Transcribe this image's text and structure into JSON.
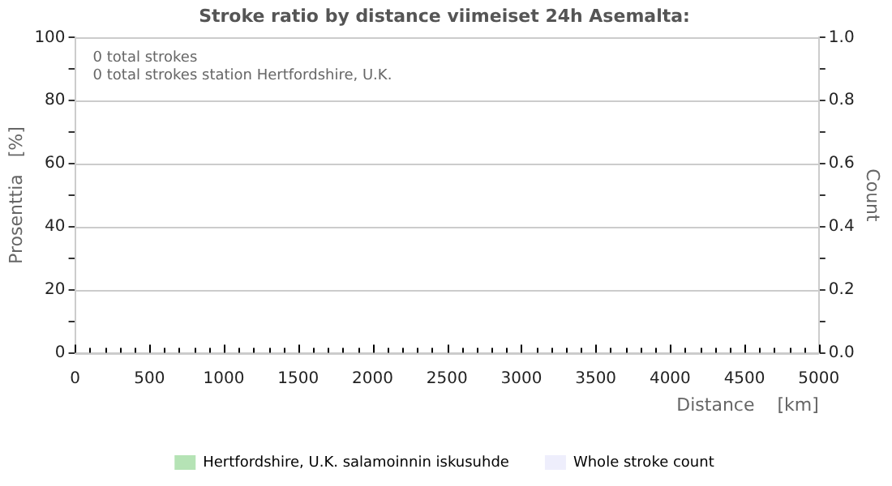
{
  "chart_data": {
    "type": "bar",
    "title": "Stroke ratio by distance viimeiset 24h Asemalta:",
    "xlabel": "Distance    [km]",
    "ylabel": "Prosenttia   [%]",
    "y2label": "Count",
    "annotations": [
      "0 total strokes",
      "0 total strokes station Hertfordshire, U.K."
    ],
    "series": [
      {
        "name": "Hertfordshire, U.K. salamoinnin iskusuhde",
        "color": "#b5e3b5",
        "values": [
          null,
          null,
          null,
          null,
          null,
          null,
          null,
          null,
          null,
          null,
          null,
          null,
          null,
          null,
          null,
          null,
          null,
          null,
          null,
          null,
          null,
          null,
          null,
          null,
          null,
          null,
          null,
          null,
          null,
          null,
          null,
          null,
          null,
          null,
          null,
          null,
          null,
          null,
          null,
          null,
          null,
          null,
          null,
          null,
          null,
          null,
          null,
          null,
          null,
          null,
          null
        ]
      },
      {
        "name": "Whole stroke count",
        "color": "#eeeefc",
        "values": [
          null,
          null,
          null,
          null,
          null,
          null,
          null,
          null,
          null,
          null,
          null,
          null,
          null,
          null,
          null,
          null,
          null,
          null,
          null,
          null,
          null,
          null,
          null,
          null,
          null,
          null,
          null,
          null,
          null,
          null,
          null,
          null,
          null,
          null,
          null,
          null,
          null,
          null,
          null,
          null,
          null,
          null,
          null,
          null,
          null,
          null,
          null,
          null,
          null,
          null,
          null
        ],
        "axis": "y2"
      }
    ],
    "categories": [
      "0",
      null,
      null,
      null,
      null,
      "500",
      null,
      null,
      null,
      null,
      "1000",
      null,
      null,
      null,
      null,
      "1500",
      null,
      null,
      null,
      null,
      "2000",
      null,
      null,
      null,
      null,
      "2500",
      null,
      null,
      null,
      null,
      "3000",
      null,
      null,
      null,
      null,
      "3500",
      null,
      null,
      null,
      null,
      "4000",
      null,
      null,
      null,
      null,
      "4500",
      null,
      null,
      null,
      null,
      "5000"
    ],
    "ylim": [
      0,
      100
    ],
    "yticks": [
      0,
      {
        "value": 10,
        "label": null
      },
      20,
      {
        "value": 30,
        "label": null
      },
      40,
      {
        "value": 50,
        "label": null
      },
      60,
      {
        "value": 70,
        "label": null
      },
      80,
      {
        "value": 90,
        "label": null
      },
      100
    ],
    "y2lim": [
      0,
      1
    ],
    "y2ticks": [
      {
        "value": 0,
        "label": "0.0"
      },
      {
        "value": 0.1,
        "label": null
      },
      {
        "value": 0.2,
        "label": "0.2"
      },
      {
        "value": 0.3,
        "label": null
      },
      {
        "value": 0.4,
        "label": "0.4"
      },
      {
        "value": 0.5,
        "label": null
      },
      {
        "value": 0.6,
        "label": "0.6"
      },
      {
        "value": 0.7,
        "label": null
      },
      {
        "value": 0.8,
        "label": "0.8"
      },
      {
        "value": 0.9,
        "label": null
      },
      {
        "value": 1,
        "label": "1.0"
      }
    ],
    "grid": "y",
    "legend": "bottom"
  }
}
